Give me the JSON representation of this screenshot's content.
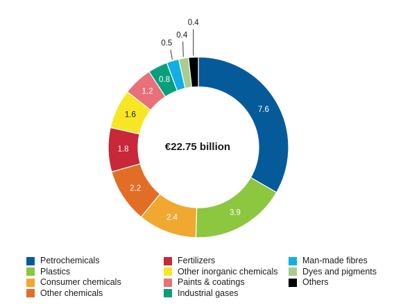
{
  "chart_data": {
    "type": "pie",
    "donut": true,
    "center_label": "€22.75 billion",
    "slices": [
      {
        "label": "Petrochemicals",
        "value": 7.6,
        "display": "7.6",
        "color": "#055a9a"
      },
      {
        "label": "Plastics",
        "value": 3.9,
        "display": "3.9",
        "color": "#8dc63f"
      },
      {
        "label": "Consumer chemicals",
        "value": 2.4,
        "display": "2.4",
        "color": "#f0a830"
      },
      {
        "label": "Other chemicals",
        "value": 2.2,
        "display": "2.2",
        "color": "#e26e26"
      },
      {
        "label": "Fertilizers",
        "value": 1.8,
        "display": "1.8",
        "color": "#c8283a"
      },
      {
        "label": "Other inorganic chemicals",
        "value": 1.6,
        "display": "1.6",
        "color": "#f7e624"
      },
      {
        "label": "Paints & coatings",
        "value": 1.2,
        "display": "1.2",
        "color": "#e8707a"
      },
      {
        "label": "Industrial gases",
        "value": 0.8,
        "display": "0.8",
        "color": "#08a07a"
      },
      {
        "label": "Man-made fibres",
        "value": 0.5,
        "display": "0.5",
        "color": "#12aee6"
      },
      {
        "label": "Dyes and pigments",
        "value": 0.4,
        "display": "0.4",
        "color": "#a9cd8c"
      },
      {
        "label": "Others",
        "value": 0.4,
        "display": "0.4",
        "color": "#000000"
      }
    ],
    "legend_columns": [
      [
        0,
        1,
        2,
        3
      ],
      [
        4,
        5,
        6,
        7
      ],
      [
        8,
        9,
        10
      ]
    ]
  }
}
